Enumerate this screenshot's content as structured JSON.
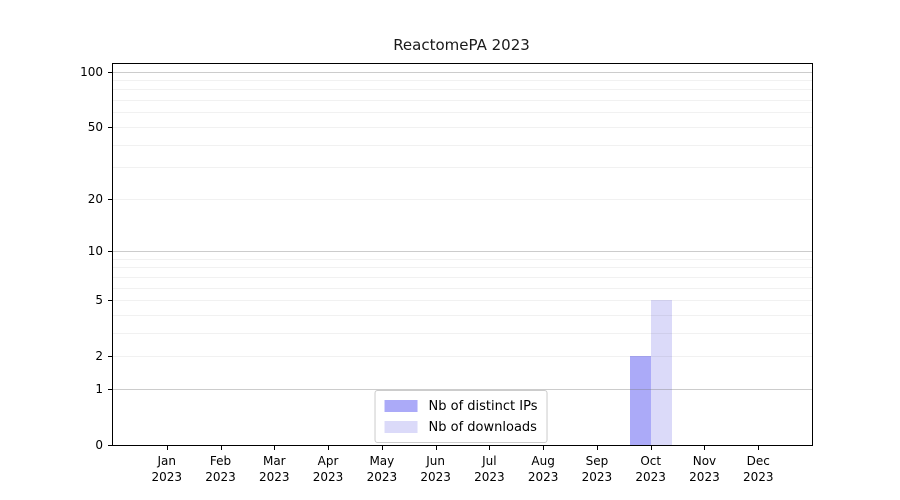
{
  "chart_data": {
    "type": "bar",
    "title": "ReactomePA 2023",
    "categories": [
      {
        "label": "Jan",
        "sublabel": "2023"
      },
      {
        "label": "Feb",
        "sublabel": "2023"
      },
      {
        "label": "Mar",
        "sublabel": "2023"
      },
      {
        "label": "Apr",
        "sublabel": "2023"
      },
      {
        "label": "May",
        "sublabel": "2023"
      },
      {
        "label": "Jun",
        "sublabel": "2023"
      },
      {
        "label": "Jul",
        "sublabel": "2023"
      },
      {
        "label": "Aug",
        "sublabel": "2023"
      },
      {
        "label": "Sep",
        "sublabel": "2023"
      },
      {
        "label": "Oct",
        "sublabel": "2023"
      },
      {
        "label": "Nov",
        "sublabel": "2023"
      },
      {
        "label": "Dec",
        "sublabel": "2023"
      }
    ],
    "series": [
      {
        "name": "Nb of distinct IPs",
        "color": "#abaaf8",
        "values": [
          0,
          0,
          0,
          0,
          0,
          0,
          0,
          0,
          0,
          2,
          0,
          0
        ]
      },
      {
        "name": "Nb of downloads",
        "color": "#dbdaf9",
        "values": [
          0,
          0,
          0,
          0,
          0,
          0,
          0,
          0,
          0,
          5,
          0,
          0
        ]
      }
    ],
    "xlabel": "",
    "ylabel": "",
    "yscale": "log1p",
    "ylim": [
      0,
      110
    ],
    "yticks": [
      0,
      1,
      2,
      5,
      10,
      20,
      50,
      100
    ],
    "grid_major_values": [
      1,
      10,
      100
    ],
    "grid_minor_values": [
      2,
      3,
      4,
      5,
      6,
      7,
      8,
      9,
      20,
      30,
      40,
      50,
      60,
      70,
      80,
      90
    ],
    "grid": "on",
    "legend_position": "lower center"
  }
}
